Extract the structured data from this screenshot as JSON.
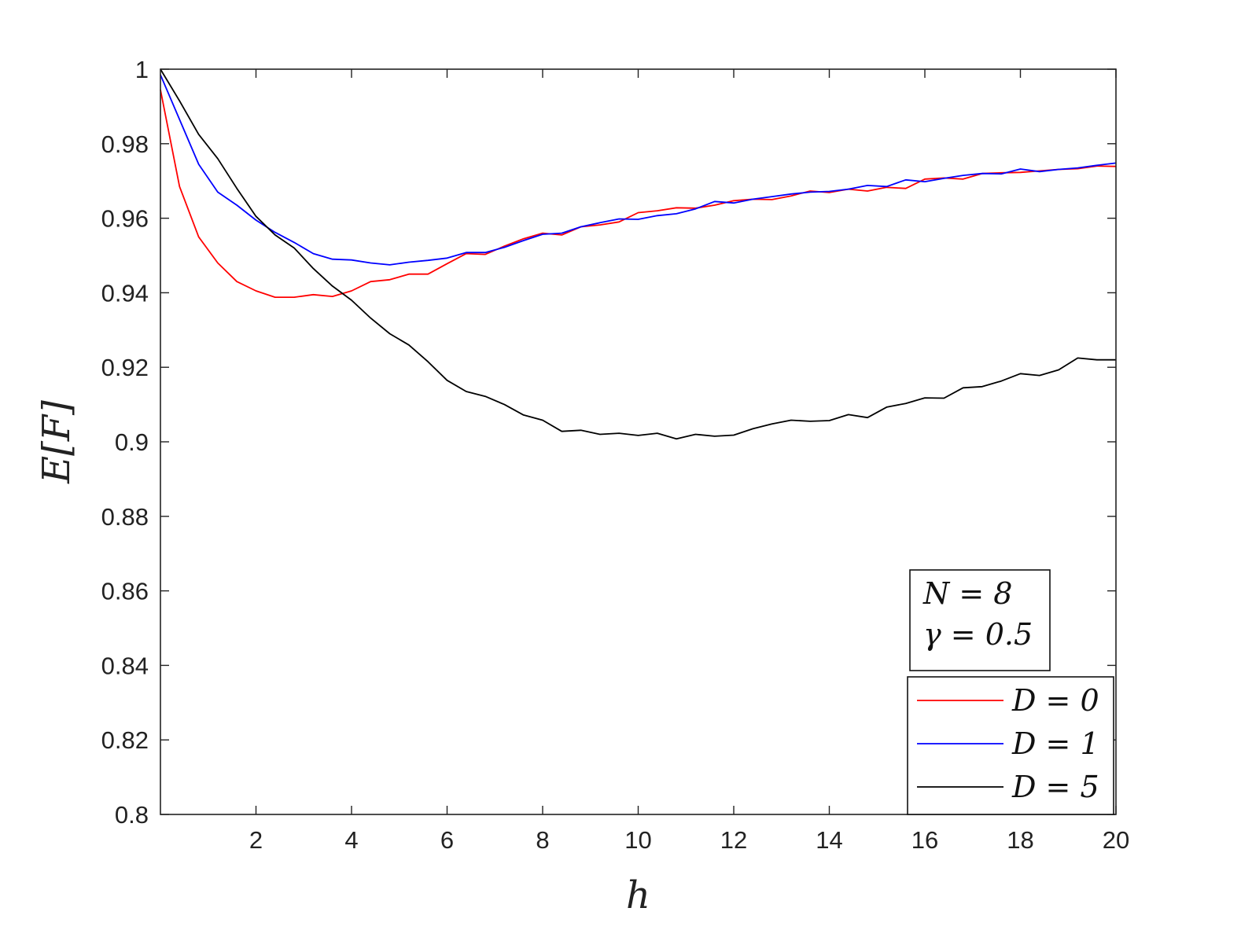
{
  "chart_data": {
    "type": "line",
    "xlabel": "h",
    "ylabel": "E[F]",
    "xlim": [
      0,
      20
    ],
    "ylim": [
      0.8,
      1.0
    ],
    "xticks": [
      2,
      4,
      6,
      8,
      10,
      12,
      14,
      16,
      18,
      20
    ],
    "xtick_labels": [
      "2",
      "4",
      "6",
      "8",
      "10",
      "12",
      "14",
      "16",
      "18",
      "20"
    ],
    "yticks": [
      0.8,
      0.82,
      0.84,
      0.86,
      0.88,
      0.9,
      0.92,
      0.94,
      0.96,
      0.98,
      1.0
    ],
    "ytick_labels": [
      "0.8",
      "0.82",
      "0.84",
      "0.86",
      "0.88",
      "0.9",
      "0.92",
      "0.94",
      "0.96",
      "0.98",
      "1"
    ],
    "grid": false,
    "legend_position": "bottom-right",
    "annotation": {
      "lines": [
        "N = 8",
        "γ = 0.5"
      ]
    },
    "x": [
      0,
      0.4,
      0.8,
      1.2,
      1.6,
      2.0,
      2.4,
      2.8,
      3.2,
      3.6,
      4.0,
      4.4,
      4.8,
      5.2,
      5.6,
      6.0,
      6.4,
      6.8,
      7.2,
      7.6,
      8.0,
      8.4,
      8.8,
      9.2,
      9.6,
      10.0,
      10.4,
      10.8,
      11.2,
      11.6,
      12.0,
      12.4,
      12.8,
      13.2,
      13.6,
      14.0,
      14.4,
      14.8,
      15.2,
      15.6,
      16.0,
      16.4,
      16.8,
      17.2,
      17.6,
      18.0,
      18.4,
      18.8,
      19.2,
      19.6,
      20.0
    ],
    "series": [
      {
        "name": "D = 0",
        "color": "#ff0000",
        "values": [
          0.9945,
          0.9685,
          0.955,
          0.948,
          0.943,
          0.9405,
          0.9388,
          0.9388,
          0.9395,
          0.939,
          0.9405,
          0.943,
          0.9435,
          0.945,
          0.945,
          0.9478,
          0.9505,
          0.9503,
          0.9525,
          0.9545,
          0.956,
          0.9555,
          0.9577,
          0.9582,
          0.959,
          0.9615,
          0.962,
          0.9628,
          0.9627,
          0.9635,
          0.9647,
          0.9651,
          0.965,
          0.966,
          0.9673,
          0.9669,
          0.9678,
          0.9673,
          0.9683,
          0.968,
          0.9705,
          0.9708,
          0.9705,
          0.972,
          0.9722,
          0.9723,
          0.9727,
          0.9731,
          0.9733,
          0.974,
          0.9739
        ]
      },
      {
        "name": "D = 1",
        "color": "#0000ff",
        "values": [
          0.9985,
          0.9865,
          0.9745,
          0.967,
          0.9635,
          0.9595,
          0.9562,
          0.9535,
          0.9505,
          0.949,
          0.9488,
          0.948,
          0.9475,
          0.9482,
          0.9487,
          0.9493,
          0.9508,
          0.9508,
          0.9522,
          0.954,
          0.9557,
          0.956,
          0.9577,
          0.9588,
          0.9598,
          0.9597,
          0.9607,
          0.9612,
          0.9625,
          0.9645,
          0.9641,
          0.9651,
          0.9658,
          0.9665,
          0.967,
          0.9672,
          0.9678,
          0.9688,
          0.9685,
          0.9703,
          0.9698,
          0.9707,
          0.9715,
          0.972,
          0.9719,
          0.9732,
          0.9725,
          0.9731,
          0.9735,
          0.9742,
          0.9748
        ]
      },
      {
        "name": "D = 5",
        "color": "#000000",
        "values": [
          1.0,
          0.9915,
          0.9825,
          0.976,
          0.968,
          0.9605,
          0.9555,
          0.952,
          0.9465,
          0.9418,
          0.938,
          0.9332,
          0.929,
          0.926,
          0.9215,
          0.9165,
          0.9135,
          0.9122,
          0.91,
          0.9072,
          0.9058,
          0.9028,
          0.9031,
          0.902,
          0.9023,
          0.9017,
          0.9023,
          0.9008,
          0.902,
          0.9015,
          0.9018,
          0.9035,
          0.9048,
          0.9058,
          0.9055,
          0.9057,
          0.9073,
          0.9065,
          0.9093,
          0.9103,
          0.9118,
          0.9117,
          0.9145,
          0.9148,
          0.9163,
          0.9183,
          0.9178,
          0.9193,
          0.9225,
          0.922,
          0.922
        ]
      }
    ]
  }
}
